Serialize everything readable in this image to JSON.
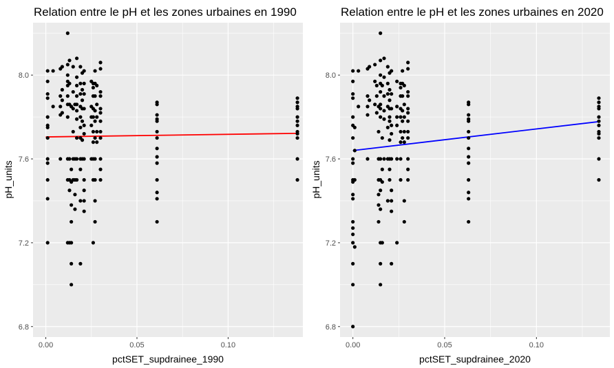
{
  "chart_data": [
    {
      "type": "scatter",
      "title": "Relation entre le pH et les zones urbaines en 1990",
      "xlabel": "pctSET_supdrainee_1990",
      "ylabel": "pH_units",
      "xlim": [
        -0.007,
        0.141
      ],
      "ylim": [
        6.75,
        8.25
      ],
      "x_ticks": [
        {
          "value": 0,
          "label": "0.00"
        },
        {
          "value": 0.05,
          "label": "0.05"
        },
        {
          "value": 0.1,
          "label": "0.10"
        }
      ],
      "y_ticks": [
        {
          "value": 6.8,
          "label": "6.8"
        },
        {
          "value": 7.2,
          "label": "7.2"
        },
        {
          "value": 7.6,
          "label": "7.6"
        },
        {
          "value": 8.0,
          "label": "8.0"
        }
      ],
      "grid": true,
      "point_color": "#000000",
      "trend": {
        "color": "#ff0000",
        "x": [
          0.0,
          0.138
        ],
        "y": [
          7.705,
          7.722
        ]
      },
      "points": [
        [
          0.001,
          8.02
        ],
        [
          0.001,
          7.97
        ],
        [
          0.001,
          7.91
        ],
        [
          0.001,
          7.89
        ],
        [
          0.001,
          7.8
        ],
        [
          0.001,
          7.76
        ],
        [
          0.001,
          7.75
        ],
        [
          0.001,
          7.7
        ],
        [
          0.001,
          7.6
        ],
        [
          0.001,
          7.58
        ],
        [
          0.001,
          7.5
        ],
        [
          0.001,
          7.41
        ],
        [
          0.001,
          7.2
        ],
        [
          0.004,
          8.02
        ],
        [
          0.004,
          7.85
        ],
        [
          0.008,
          8.03
        ],
        [
          0.008,
          7.9
        ],
        [
          0.008,
          7.85
        ],
        [
          0.008,
          7.81
        ],
        [
          0.008,
          7.6
        ],
        [
          0.009,
          8.04
        ],
        [
          0.009,
          7.93
        ],
        [
          0.009,
          7.88
        ],
        [
          0.009,
          7.82
        ],
        [
          0.012,
          8.2
        ],
        [
          0.012,
          8.05
        ],
        [
          0.012,
          8.0
        ],
        [
          0.012,
          7.97
        ],
        [
          0.012,
          7.95
        ],
        [
          0.012,
          7.9
        ],
        [
          0.012,
          7.86
        ],
        [
          0.012,
          7.8
        ],
        [
          0.012,
          7.6
        ],
        [
          0.012,
          7.5
        ],
        [
          0.012,
          7.2
        ],
        [
          0.013,
          8.07
        ],
        [
          0.013,
          7.96
        ],
        [
          0.013,
          7.86
        ],
        [
          0.013,
          7.6
        ],
        [
          0.013,
          7.5
        ],
        [
          0.013,
          7.45
        ],
        [
          0.013,
          7.2
        ],
        [
          0.014,
          7.85
        ],
        [
          0.014,
          7.55
        ],
        [
          0.014,
          7.49
        ],
        [
          0.014,
          7.38
        ],
        [
          0.014,
          7.3
        ],
        [
          0.014,
          7.2
        ],
        [
          0.014,
          7.1
        ],
        [
          0.014,
          7.0
        ],
        [
          0.015,
          8.04
        ],
        [
          0.015,
          7.92
        ],
        [
          0.015,
          7.84
        ],
        [
          0.015,
          7.73
        ],
        [
          0.015,
          7.6
        ],
        [
          0.015,
          7.5
        ],
        [
          0.016,
          7.86
        ],
        [
          0.016,
          7.6
        ],
        [
          0.016,
          7.5
        ],
        [
          0.016,
          7.43
        ],
        [
          0.016,
          7.36
        ],
        [
          0.017,
          8.08
        ],
        [
          0.017,
          7.99
        ],
        [
          0.017,
          7.95
        ],
        [
          0.017,
          7.9
        ],
        [
          0.017,
          7.86
        ],
        [
          0.017,
          7.83
        ],
        [
          0.017,
          7.79
        ],
        [
          0.017,
          7.7
        ],
        [
          0.017,
          7.6
        ],
        [
          0.017,
          7.5
        ],
        [
          0.019,
          8.04
        ],
        [
          0.019,
          7.96
        ],
        [
          0.019,
          7.91
        ],
        [
          0.019,
          7.85
        ],
        [
          0.019,
          7.8
        ],
        [
          0.019,
          7.75
        ],
        [
          0.019,
          7.7
        ],
        [
          0.019,
          7.6
        ],
        [
          0.019,
          7.55
        ],
        [
          0.019,
          7.4
        ],
        [
          0.019,
          7.1
        ],
        [
          0.02,
          8.01
        ],
        [
          0.02,
          7.93
        ],
        [
          0.02,
          7.88
        ],
        [
          0.02,
          7.84
        ],
        [
          0.02,
          7.78
        ],
        [
          0.02,
          7.69
        ],
        [
          0.02,
          7.6
        ],
        [
          0.021,
          8.02
        ],
        [
          0.021,
          7.96
        ],
        [
          0.021,
          7.91
        ],
        [
          0.021,
          7.84
        ],
        [
          0.021,
          7.76
        ],
        [
          0.021,
          7.72
        ],
        [
          0.021,
          7.6
        ],
        [
          0.021,
          7.5
        ],
        [
          0.021,
          7.45
        ],
        [
          0.021,
          7.4
        ],
        [
          0.021,
          7.35
        ],
        [
          0.025,
          7.97
        ],
        [
          0.025,
          7.85
        ],
        [
          0.025,
          7.8
        ],
        [
          0.025,
          7.76
        ],
        [
          0.025,
          7.6
        ],
        [
          0.026,
          7.96
        ],
        [
          0.026,
          7.94
        ],
        [
          0.026,
          7.9
        ],
        [
          0.026,
          7.84
        ],
        [
          0.026,
          7.8
        ],
        [
          0.026,
          7.73
        ],
        [
          0.026,
          7.68
        ],
        [
          0.026,
          7.6
        ],
        [
          0.026,
          7.5
        ],
        [
          0.026,
          7.2
        ],
        [
          0.027,
          8.02
        ],
        [
          0.027,
          7.96
        ],
        [
          0.027,
          7.9
        ],
        [
          0.027,
          7.83
        ],
        [
          0.027,
          7.78
        ],
        [
          0.027,
          7.7
        ],
        [
          0.027,
          7.6
        ],
        [
          0.027,
          7.5
        ],
        [
          0.027,
          7.4
        ],
        [
          0.027,
          7.3
        ],
        [
          0.028,
          7.95
        ],
        [
          0.028,
          7.86
        ],
        [
          0.028,
          7.8
        ],
        [
          0.028,
          7.73
        ],
        [
          0.028,
          7.68
        ],
        [
          0.03,
          8.06
        ],
        [
          0.03,
          8.03
        ],
        [
          0.03,
          7.92
        ],
        [
          0.03,
          7.9
        ],
        [
          0.03,
          7.84
        ],
        [
          0.03,
          7.82
        ],
        [
          0.03,
          7.78
        ],
        [
          0.03,
          7.73
        ],
        [
          0.03,
          7.7
        ],
        [
          0.03,
          7.6
        ],
        [
          0.03,
          7.55
        ],
        [
          0.03,
          7.5
        ],
        [
          0.061,
          7.87
        ],
        [
          0.061,
          7.86
        ],
        [
          0.061,
          7.81
        ],
        [
          0.061,
          7.79
        ],
        [
          0.061,
          7.78
        ],
        [
          0.061,
          7.73
        ],
        [
          0.061,
          7.7
        ],
        [
          0.061,
          7.65
        ],
        [
          0.061,
          7.61
        ],
        [
          0.061,
          7.58
        ],
        [
          0.061,
          7.5
        ],
        [
          0.061,
          7.44
        ],
        [
          0.061,
          7.41
        ],
        [
          0.061,
          7.3
        ],
        [
          0.138,
          7.89
        ],
        [
          0.138,
          7.87
        ],
        [
          0.138,
          7.85
        ],
        [
          0.138,
          7.84
        ],
        [
          0.138,
          7.8
        ],
        [
          0.138,
          7.78
        ],
        [
          0.138,
          7.76
        ],
        [
          0.138,
          7.73
        ],
        [
          0.138,
          7.72
        ],
        [
          0.138,
          7.7
        ],
        [
          0.138,
          7.6
        ],
        [
          0.138,
          7.5
        ]
      ]
    },
    {
      "type": "scatter",
      "title": "Relation entre le pH et les zones urbaines en 2020",
      "xlabel": "pctSET_supdrainee_2020",
      "ylabel": "pH_units",
      "xlim": [
        -0.007,
        0.14
      ],
      "ylim": [
        6.75,
        8.25
      ],
      "x_ticks": [
        {
          "value": 0,
          "label": "0.00"
        },
        {
          "value": 0.05,
          "label": "0.05"
        },
        {
          "value": 0.1,
          "label": "0.10"
        }
      ],
      "y_ticks": [
        {
          "value": 6.8,
          "label": "6.8"
        },
        {
          "value": 7.2,
          "label": "7.2"
        },
        {
          "value": 7.6,
          "label": "7.6"
        },
        {
          "value": 8.0,
          "label": "8.0"
        }
      ],
      "grid": true,
      "point_color": "#000000",
      "trend": {
        "color": "#0000ff",
        "x": [
          0.0,
          0.134
        ],
        "y": [
          7.64,
          7.778
        ]
      },
      "points": [
        [
          0.0,
          8.02
        ],
        [
          0.0,
          7.97
        ],
        [
          0.0,
          7.91
        ],
        [
          0.0,
          7.89
        ],
        [
          0.0,
          7.8
        ],
        [
          0.0,
          7.76
        ],
        [
          0.0,
          7.7
        ],
        [
          0.0,
          7.6
        ],
        [
          0.0,
          7.58
        ],
        [
          0.0,
          7.5
        ],
        [
          0.0,
          7.49
        ],
        [
          0.0,
          7.43
        ],
        [
          0.0,
          7.41
        ],
        [
          0.0,
          7.3
        ],
        [
          0.0,
          7.27
        ],
        [
          0.0,
          7.24
        ],
        [
          0.0,
          7.2
        ],
        [
          0.0,
          7.1
        ],
        [
          0.0,
          7.0
        ],
        [
          0.0,
          6.8
        ],
        [
          0.001,
          7.75
        ],
        [
          0.001,
          7.64
        ],
        [
          0.001,
          7.5
        ],
        [
          0.001,
          7.18
        ],
        [
          0.003,
          8.02
        ],
        [
          0.003,
          7.85
        ],
        [
          0.008,
          8.03
        ],
        [
          0.008,
          7.9
        ],
        [
          0.008,
          7.85
        ],
        [
          0.008,
          7.81
        ],
        [
          0.008,
          7.6
        ],
        [
          0.009,
          8.04
        ],
        [
          0.009,
          7.88
        ],
        [
          0.012,
          8.05
        ],
        [
          0.012,
          7.97
        ],
        [
          0.012,
          7.86
        ],
        [
          0.013,
          7.95
        ],
        [
          0.013,
          7.9
        ],
        [
          0.013,
          7.82
        ],
        [
          0.014,
          7.85
        ],
        [
          0.014,
          7.73
        ],
        [
          0.014,
          7.6
        ],
        [
          0.014,
          7.5
        ],
        [
          0.014,
          7.43
        ],
        [
          0.014,
          7.38
        ],
        [
          0.014,
          7.3
        ],
        [
          0.015,
          8.2
        ],
        [
          0.015,
          8.07
        ],
        [
          0.015,
          8.0
        ],
        [
          0.015,
          7.96
        ],
        [
          0.015,
          7.92
        ],
        [
          0.015,
          7.86
        ],
        [
          0.015,
          7.84
        ],
        [
          0.015,
          7.8
        ],
        [
          0.015,
          7.6
        ],
        [
          0.015,
          7.5
        ],
        [
          0.015,
          7.45
        ],
        [
          0.015,
          7.36
        ],
        [
          0.015,
          7.2
        ],
        [
          0.015,
          7.1
        ],
        [
          0.015,
          7.0
        ],
        [
          0.016,
          7.95
        ],
        [
          0.016,
          7.7
        ],
        [
          0.016,
          7.55
        ],
        [
          0.016,
          7.49
        ],
        [
          0.016,
          7.2
        ],
        [
          0.017,
          8.08
        ],
        [
          0.017,
          7.99
        ],
        [
          0.017,
          7.9
        ],
        [
          0.017,
          7.83
        ],
        [
          0.017,
          7.79
        ],
        [
          0.017,
          7.6
        ],
        [
          0.019,
          8.04
        ],
        [
          0.019,
          7.96
        ],
        [
          0.019,
          7.91
        ],
        [
          0.019,
          7.85
        ],
        [
          0.019,
          7.75
        ],
        [
          0.019,
          7.6
        ],
        [
          0.019,
          7.4
        ],
        [
          0.02,
          8.01
        ],
        [
          0.02,
          7.93
        ],
        [
          0.02,
          7.88
        ],
        [
          0.02,
          7.84
        ],
        [
          0.02,
          7.8
        ],
        [
          0.02,
          7.78
        ],
        [
          0.02,
          7.69
        ],
        [
          0.02,
          7.6
        ],
        [
          0.02,
          7.55
        ],
        [
          0.02,
          7.5
        ],
        [
          0.021,
          8.02
        ],
        [
          0.021,
          7.91
        ],
        [
          0.021,
          7.84
        ],
        [
          0.021,
          7.76
        ],
        [
          0.021,
          7.72
        ],
        [
          0.021,
          7.6
        ],
        [
          0.021,
          7.45
        ],
        [
          0.021,
          7.4
        ],
        [
          0.021,
          7.35
        ],
        [
          0.021,
          7.1
        ],
        [
          0.024,
          7.97
        ],
        [
          0.024,
          7.85
        ],
        [
          0.024,
          7.8
        ],
        [
          0.024,
          7.76
        ],
        [
          0.024,
          7.6
        ],
        [
          0.024,
          7.2
        ],
        [
          0.026,
          7.96
        ],
        [
          0.026,
          7.94
        ],
        [
          0.026,
          7.9
        ],
        [
          0.026,
          7.84
        ],
        [
          0.026,
          7.8
        ],
        [
          0.026,
          7.73
        ],
        [
          0.026,
          7.68
        ],
        [
          0.026,
          7.6
        ],
        [
          0.026,
          7.5
        ],
        [
          0.027,
          8.02
        ],
        [
          0.027,
          7.96
        ],
        [
          0.027,
          7.9
        ],
        [
          0.027,
          7.83
        ],
        [
          0.027,
          7.78
        ],
        [
          0.027,
          7.7
        ],
        [
          0.028,
          7.95
        ],
        [
          0.028,
          7.86
        ],
        [
          0.028,
          7.8
        ],
        [
          0.028,
          7.73
        ],
        [
          0.028,
          7.68
        ],
        [
          0.028,
          7.4
        ],
        [
          0.028,
          7.3
        ],
        [
          0.03,
          8.06
        ],
        [
          0.03,
          8.03
        ],
        [
          0.03,
          7.92
        ],
        [
          0.03,
          7.9
        ],
        [
          0.03,
          7.84
        ],
        [
          0.03,
          7.82
        ],
        [
          0.03,
          7.78
        ],
        [
          0.03,
          7.73
        ],
        [
          0.03,
          7.7
        ],
        [
          0.03,
          7.6
        ],
        [
          0.03,
          7.55
        ],
        [
          0.03,
          7.5
        ],
        [
          0.063,
          7.87
        ],
        [
          0.063,
          7.86
        ],
        [
          0.063,
          7.81
        ],
        [
          0.063,
          7.79
        ],
        [
          0.063,
          7.78
        ],
        [
          0.063,
          7.73
        ],
        [
          0.063,
          7.7
        ],
        [
          0.063,
          7.65
        ],
        [
          0.063,
          7.61
        ],
        [
          0.063,
          7.58
        ],
        [
          0.063,
          7.5
        ],
        [
          0.063,
          7.44
        ],
        [
          0.063,
          7.41
        ],
        [
          0.063,
          7.3
        ],
        [
          0.134,
          7.89
        ],
        [
          0.134,
          7.87
        ],
        [
          0.134,
          7.85
        ],
        [
          0.134,
          7.84
        ],
        [
          0.134,
          7.8
        ],
        [
          0.134,
          7.78
        ],
        [
          0.134,
          7.76
        ],
        [
          0.134,
          7.73
        ],
        [
          0.134,
          7.72
        ],
        [
          0.134,
          7.7
        ],
        [
          0.134,
          7.6
        ],
        [
          0.134,
          7.5
        ]
      ]
    }
  ]
}
